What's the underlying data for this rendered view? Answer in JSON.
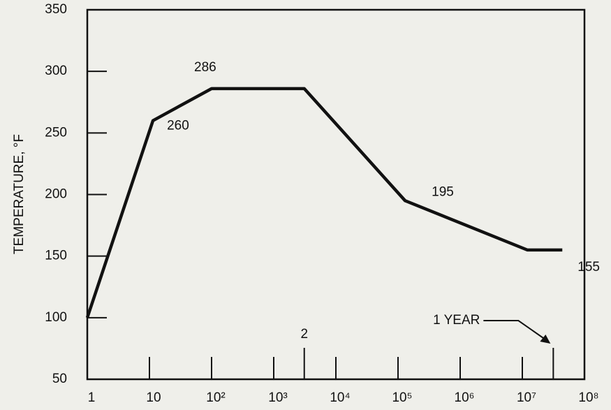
{
  "chart_data": {
    "type": "line",
    "ylabel": "TEMPERATURE, °F",
    "x": [
      1,
      11.4,
      100,
      3100,
      130000,
      12000000,
      44000000
    ],
    "series": [
      {
        "color": "#111111",
        "values": [
          100,
          260,
          286,
          286,
          195,
          155,
          155
        ],
        "value_labels": [
          null,
          "260",
          "286",
          null,
          "195",
          null,
          "155"
        ]
      }
    ],
    "xlog": true,
    "xlim": [
      1,
      100000000
    ],
    "xticks": [
      1,
      10,
      {
        "value": 100,
        "label": "10²"
      },
      {
        "value": 1000,
        "label": "10³"
      },
      {
        "value": 10000,
        "label": "10⁴"
      },
      {
        "value": 100000,
        "label": "10⁵"
      },
      {
        "value": 1000000,
        "label": "10⁶"
      },
      {
        "value": 10000000,
        "label": "10⁷"
      },
      {
        "value": 100000000,
        "label": "10⁸"
      }
    ],
    "ylim": [
      50,
      350
    ],
    "yticks": [
      50,
      100,
      150,
      200,
      250,
      300,
      350
    ],
    "grid": false,
    "annotations": [
      {
        "text": "2",
        "x": 3100
      },
      {
        "text": "1 YEAR",
        "x": 31500000
      }
    ]
  }
}
